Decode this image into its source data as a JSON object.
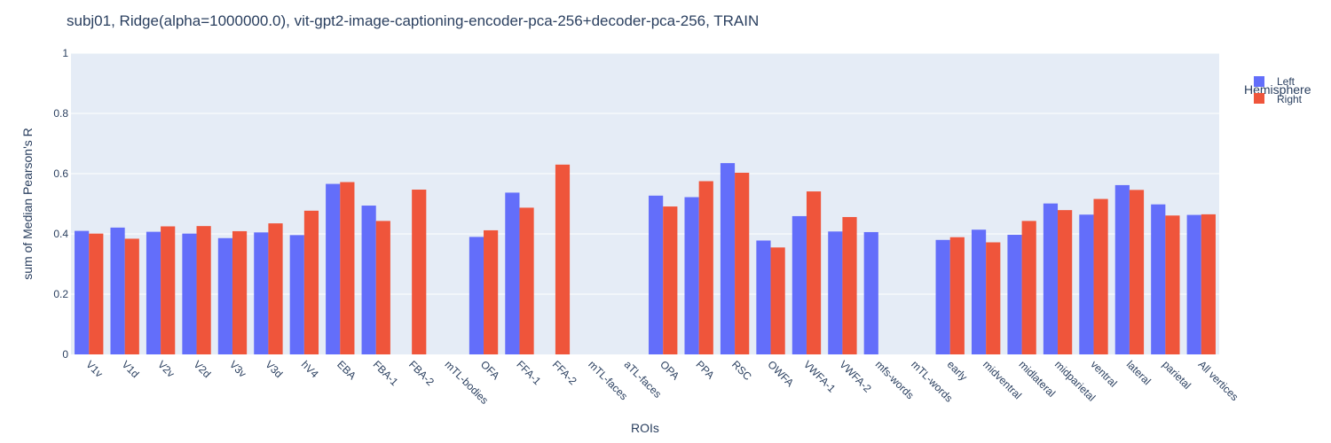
{
  "chart_data": {
    "type": "bar",
    "title": "subj01, Ridge(alpha=1000000.0), vit-gpt2-image-captioning-encoder-pca-256+decoder-pca-256, TRAIN",
    "xlabel": "ROIs",
    "ylabel": "sum of Median Pearson's R",
    "ylim": [
      0,
      1
    ],
    "yticks": [
      "0",
      "0.2",
      "0.4",
      "0.6",
      "0.8",
      "1"
    ],
    "legend_title": "Hemisphere",
    "legend_position": "top-right",
    "grid": true,
    "colors": {
      "Left": "#636efa",
      "Right": "#ef553b",
      "plot_bg": "#e5ecf6",
      "text": "#2a3f5f"
    },
    "categories": [
      "V1v",
      "V1d",
      "V2v",
      "V2d",
      "V3v",
      "V3d",
      "hV4",
      "EBA",
      "FBA-1",
      "FBA-2",
      "mTL-bodies",
      "OFA",
      "FFA-1",
      "FFA-2",
      "mTL-faces",
      "aTL-faces",
      "OPA",
      "PPA",
      "RSC",
      "OWFA",
      "VWFA-1",
      "VWFA-2",
      "mfs-words",
      "mTL-words",
      "early",
      "midventral",
      "midlateral",
      "midparietal",
      "ventral",
      "lateral",
      "parietal",
      "All vertices"
    ],
    "series": [
      {
        "name": "Left",
        "values": [
          0.41,
          0.421,
          0.407,
          0.401,
          0.386,
          0.405,
          0.396,
          0.566,
          0.494,
          null,
          null,
          0.39,
          0.537,
          null,
          null,
          null,
          0.527,
          0.522,
          0.635,
          0.378,
          0.459,
          0.408,
          0.406,
          null,
          0.38,
          0.414,
          0.397,
          0.501,
          0.464,
          0.562,
          0.498,
          0.463
        ]
      },
      {
        "name": "Right",
        "values": [
          0.401,
          0.384,
          0.425,
          0.426,
          0.409,
          0.435,
          0.477,
          0.572,
          0.443,
          0.547,
          null,
          0.412,
          0.487,
          0.63,
          null,
          null,
          0.491,
          0.575,
          0.603,
          0.355,
          0.541,
          0.456,
          null,
          null,
          0.389,
          0.372,
          0.443,
          0.479,
          0.516,
          0.546,
          0.461,
          0.465
        ]
      }
    ]
  }
}
